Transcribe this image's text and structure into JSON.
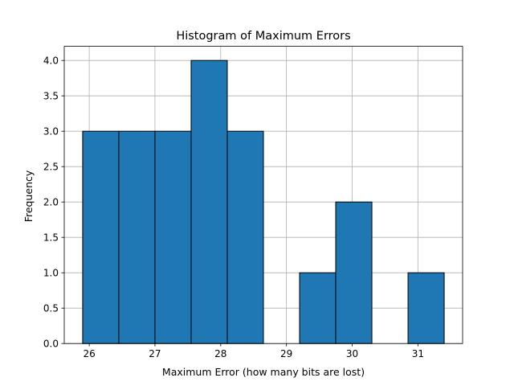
{
  "chart_data": {
    "type": "bar",
    "title": "Histogram of Maximum Errors",
    "xlabel": "Maximum Error (how many bits are lost)",
    "ylabel": "Frequency",
    "bins": [
      {
        "start": 25.9,
        "end": 26.45,
        "count": 3
      },
      {
        "start": 26.45,
        "end": 27.0,
        "count": 3
      },
      {
        "start": 27.0,
        "end": 27.55,
        "count": 3
      },
      {
        "start": 27.55,
        "end": 28.1,
        "count": 4
      },
      {
        "start": 28.1,
        "end": 28.65,
        "count": 3
      },
      {
        "start": 28.65,
        "end": 29.2,
        "count": 0
      },
      {
        "start": 29.2,
        "end": 29.75,
        "count": 1
      },
      {
        "start": 29.75,
        "end": 30.3,
        "count": 2
      },
      {
        "start": 30.3,
        "end": 30.85,
        "count": 0
      },
      {
        "start": 30.85,
        "end": 31.4,
        "count": 1
      }
    ],
    "xlim": [
      25.62,
      31.68
    ],
    "ylim": [
      0,
      4.2
    ],
    "xticks": [
      26,
      27,
      28,
      29,
      30,
      31
    ],
    "xtick_labels": [
      "26",
      "27",
      "28",
      "29",
      "30",
      "31"
    ],
    "yticks": [
      0,
      0.5,
      1,
      1.5,
      2,
      2.5,
      3,
      3.5,
      4
    ],
    "ytick_labels": [
      "0.0",
      "0.5",
      "1.0",
      "1.5",
      "2.0",
      "2.5",
      "3.0",
      "3.5",
      "4.0"
    ],
    "grid": true,
    "bar_color": "#1f77b4",
    "edge_color": "#000000",
    "grid_color": "#b0b0b0"
  }
}
